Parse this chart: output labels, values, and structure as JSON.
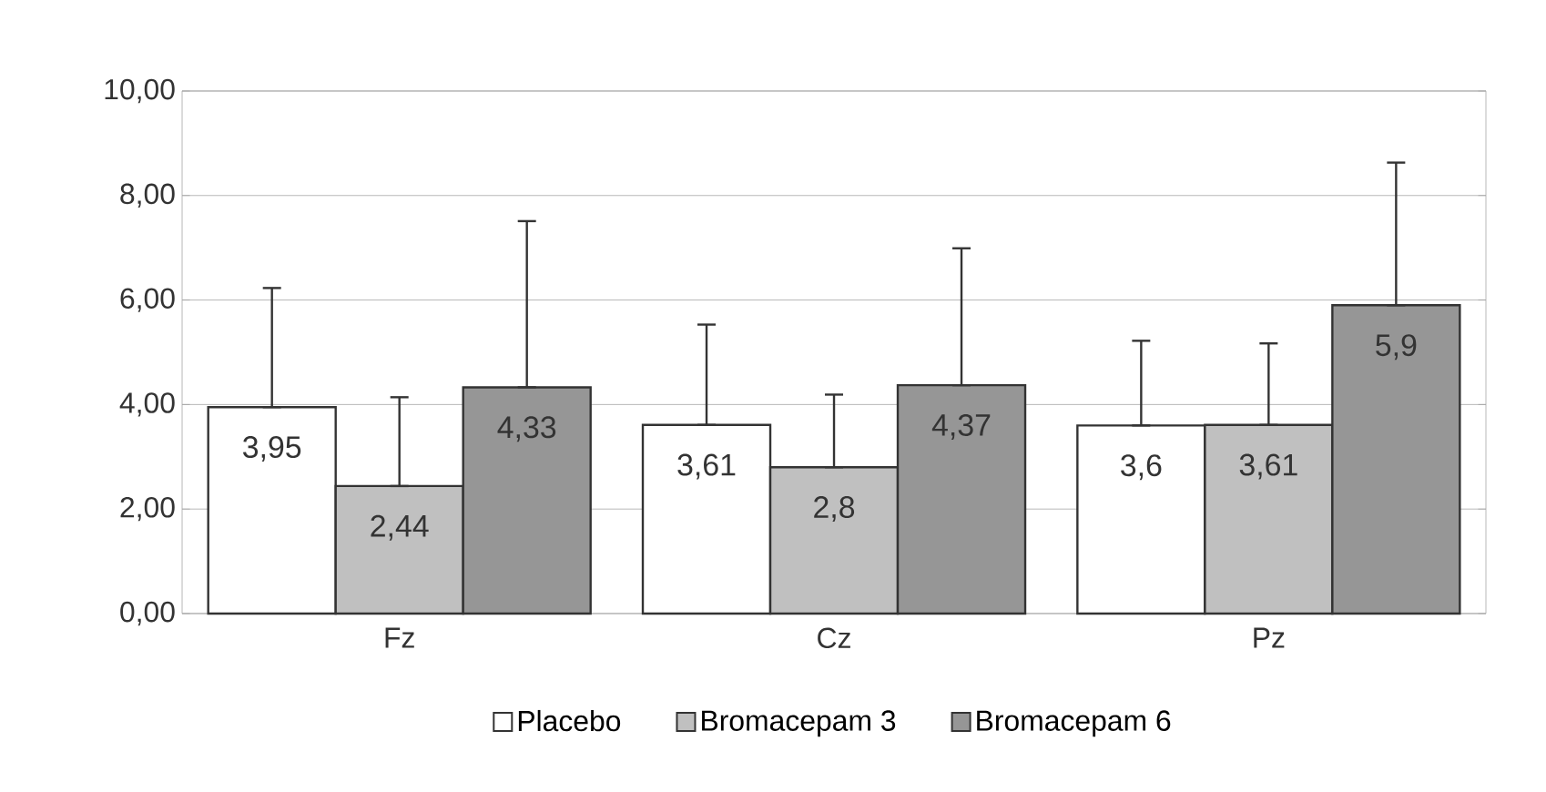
{
  "chart_data": {
    "type": "bar",
    "categories": [
      "Fz",
      "Cz",
      "Pz"
    ],
    "series": [
      {
        "name": "Placebo",
        "color": "#ffffff",
        "values": [
          3.95,
          3.61,
          3.6
        ],
        "value_labels": [
          "3,95",
          "3,61",
          "3,6"
        ],
        "errors": [
          [
            3.95,
            6.23
          ],
          [
            3.61,
            5.53
          ],
          [
            3.6,
            5.22
          ]
        ]
      },
      {
        "name": "Bromacepam 3",
        "color": "#c0c0c0",
        "values": [
          2.44,
          2.8,
          3.61
        ],
        "value_labels": [
          "2,44",
          "2,8",
          "3,61"
        ],
        "errors": [
          [
            2.44,
            4.14
          ],
          [
            2.8,
            4.19
          ],
          [
            3.61,
            5.17
          ]
        ]
      },
      {
        "name": "Bromacepam 6",
        "color": "#969696",
        "values": [
          4.33,
          4.37,
          5.9
        ],
        "value_labels": [
          "4,33",
          "4,37",
          "5,9"
        ],
        "errors": [
          [
            4.33,
            7.51
          ],
          [
            4.37,
            6.99
          ],
          [
            5.9,
            8.63
          ]
        ]
      }
    ],
    "ylim": [
      0,
      10
    ],
    "yticks": [
      {
        "value": 0,
        "label": "0,00"
      },
      {
        "value": 2,
        "label": "2,00"
      },
      {
        "value": 4,
        "label": "4,00"
      },
      {
        "value": 6,
        "label": "6,00"
      },
      {
        "value": 8,
        "label": "8,00"
      },
      {
        "value": 10,
        "label": "10,00"
      }
    ],
    "grid": "y",
    "legend": "bottom"
  }
}
